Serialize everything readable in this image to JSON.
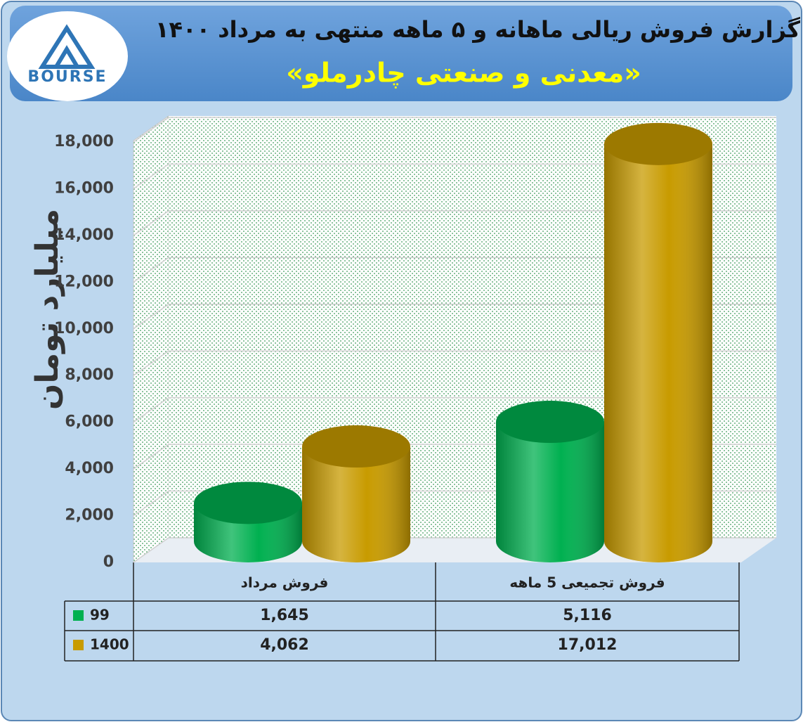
{
  "logo": {
    "text": "BOURSE"
  },
  "chart_data": {
    "type": "bar",
    "title": "گزارش فروش ریالی ماهانه و ۵ ماهه منتهی به مرداد ۱۴۰۰",
    "subtitle": "«معدنی و صنعتی چادرملو»",
    "y_label": "میلیارد تومان",
    "categories": [
      "فروش مرداد",
      "فروش تجمیعی 5 ماهه"
    ],
    "series": [
      {
        "name": "99",
        "color": "#00b050",
        "values": [
          1645,
          5116
        ],
        "value_labels": [
          "1,645",
          "5,116"
        ]
      },
      {
        "name": "1400",
        "color": "#c89b00",
        "values": [
          4062,
          17012
        ],
        "value_labels": [
          "4,062",
          "17,012"
        ]
      }
    ],
    "ylim": [
      0,
      18000
    ],
    "yticks": [
      0,
      {
        "value": 2000,
        "label": "2,000"
      },
      {
        "value": 4000,
        "label": "4,000"
      },
      {
        "value": 6000,
        "label": "6,000"
      },
      {
        "value": 8000,
        "label": "8,000"
      },
      {
        "value": 10000,
        "label": "10,000"
      },
      {
        "value": 12000,
        "label": "12,000"
      },
      {
        "value": 14000,
        "label": "14,000"
      },
      {
        "value": 16000,
        "label": "16,000"
      },
      {
        "value": 18000,
        "label": "18,000"
      }
    ],
    "grid": true
  }
}
